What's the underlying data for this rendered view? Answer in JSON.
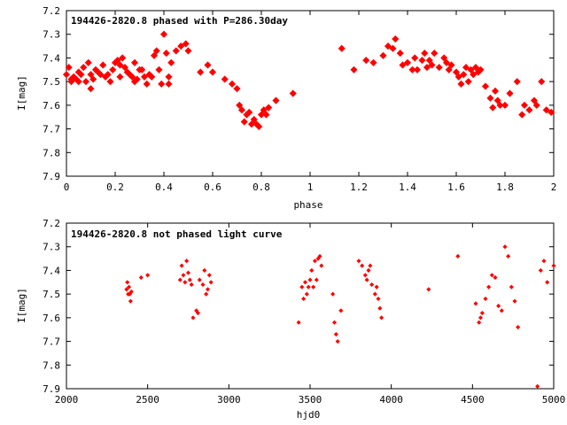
{
  "chart_data": [
    {
      "type": "scatter",
      "title": "194426-2820.8 phased with P=286.30day",
      "xlabel": "phase",
      "ylabel": "I[mag]",
      "xlim": [
        0,
        2
      ],
      "ylim": [
        7.9,
        7.2
      ],
      "y_inverted": true,
      "xticks": [
        "0",
        "0.2",
        "0.4",
        "0.6",
        "0.8",
        "1",
        "1.2",
        "1.4",
        "1.6",
        "1.8",
        "2"
      ],
      "yticks": [
        "7.2",
        "7.3",
        "7.4",
        "7.5",
        "7.6",
        "7.7",
        "7.8",
        "7.9"
      ],
      "marker_color": "#ff0000",
      "marker": "filled-diamond",
      "grid": false,
      "series": [
        {
          "x": [
            0.0,
            0.01,
            0.02,
            0.02,
            0.03,
            0.04,
            0.05,
            0.05,
            0.06,
            0.07,
            0.08,
            0.09,
            0.1,
            0.1,
            0.11,
            0.12,
            0.13,
            0.14,
            0.15,
            0.16,
            0.17,
            0.18,
            0.19,
            0.2,
            0.21,
            0.22,
            0.22,
            0.23,
            0.24,
            0.25,
            0.26,
            0.27,
            0.28,
            0.28,
            0.29,
            0.3,
            0.31,
            0.32,
            0.33,
            0.34,
            0.35,
            0.36,
            0.37,
            0.38,
            0.39,
            0.4,
            0.41,
            0.42,
            0.42,
            0.43,
            0.45,
            0.47,
            0.49,
            0.5,
            0.55,
            0.58,
            0.6,
            0.65,
            0.68,
            0.7,
            0.71,
            0.72,
            0.73,
            0.74,
            0.75,
            0.76,
            0.77,
            0.78,
            0.79,
            0.8,
            0.81,
            0.82,
            0.83,
            0.86,
            0.93,
            1.13,
            1.18,
            1.23,
            1.26,
            1.3,
            1.32,
            1.34,
            1.35,
            1.37,
            1.38,
            1.4,
            1.42,
            1.43,
            1.44,
            1.46,
            1.47,
            1.48,
            1.49,
            1.5,
            1.51,
            1.53,
            1.55,
            1.56,
            1.57,
            1.58,
            1.6,
            1.61,
            1.62,
            1.63,
            1.64,
            1.65,
            1.66,
            1.67,
            1.68,
            1.69,
            1.7,
            1.72,
            1.74,
            1.75,
            1.76,
            1.77,
            1.78,
            1.8,
            1.82,
            1.85,
            1.87,
            1.88,
            1.9,
            1.92,
            1.93,
            1.95,
            1.97,
            1.99
          ],
          "y": [
            7.47,
            7.44,
            7.49,
            7.5,
            7.48,
            7.49,
            7.46,
            7.5,
            7.47,
            7.44,
            7.5,
            7.42,
            7.47,
            7.53,
            7.49,
            7.45,
            7.46,
            7.47,
            7.43,
            7.48,
            7.47,
            7.5,
            7.45,
            7.42,
            7.41,
            7.43,
            7.48,
            7.4,
            7.44,
            7.46,
            7.47,
            7.48,
            7.5,
            7.42,
            7.49,
            7.45,
            7.45,
            7.48,
            7.51,
            7.47,
            7.48,
            7.39,
            7.37,
            7.45,
            7.51,
            7.3,
            7.38,
            7.48,
            7.51,
            7.42,
            7.37,
            7.35,
            7.34,
            7.37,
            7.46,
            7.43,
            7.46,
            7.49,
            7.51,
            7.53,
            7.6,
            7.62,
            7.67,
            7.64,
            7.63,
            7.68,
            7.66,
            7.68,
            7.69,
            7.64,
            7.62,
            7.64,
            7.61,
            7.58,
            7.55,
            7.36,
            7.45,
            7.41,
            7.42,
            7.39,
            7.35,
            7.36,
            7.32,
            7.38,
            7.43,
            7.42,
            7.45,
            7.4,
            7.45,
            7.41,
            7.38,
            7.44,
            7.41,
            7.43,
            7.38,
            7.44,
            7.4,
            7.42,
            7.45,
            7.43,
            7.46,
            7.48,
            7.51,
            7.47,
            7.44,
            7.5,
            7.45,
            7.47,
            7.44,
            7.46,
            7.45,
            7.52,
            7.57,
            7.61,
            7.54,
            7.58,
            7.6,
            7.6,
            7.55,
            7.5,
            7.64,
            7.6,
            7.62,
            7.58,
            7.6,
            7.5,
            7.62,
            7.63
          ]
        }
      ]
    },
    {
      "type": "scatter",
      "title": "194426-2820.8 not phased light curve",
      "xlabel": "hjd0",
      "ylabel": "I[mag]",
      "xlim": [
        2000,
        5000
      ],
      "ylim": [
        7.9,
        7.2
      ],
      "y_inverted": true,
      "xticks": [
        "2000",
        "2500",
        "3000",
        "3500",
        "4000",
        "4500",
        "5000"
      ],
      "yticks": [
        "7.2",
        "7.3",
        "7.4",
        "7.5",
        "7.6",
        "7.7",
        "7.8",
        "7.9"
      ],
      "marker_color": "#ff0000",
      "marker": "small-diamond",
      "grid": false,
      "series": [
        {
          "x": [
            2370,
            2375,
            2380,
            2385,
            2390,
            2395,
            2400,
            2460,
            2500,
            2700,
            2710,
            2720,
            2730,
            2740,
            2750,
            2760,
            2770,
            2780,
            2800,
            2810,
            2820,
            2840,
            2850,
            2860,
            2870,
            2880,
            2890,
            3430,
            3450,
            3460,
            3470,
            3480,
            3490,
            3500,
            3510,
            3520,
            3530,
            3540,
            3550,
            3560,
            3570,
            3640,
            3650,
            3660,
            3670,
            3690,
            3800,
            3820,
            3840,
            3850,
            3860,
            3870,
            3880,
            3900,
            3910,
            3920,
            3930,
            3940,
            4230,
            4410,
            4520,
            4540,
            4550,
            4560,
            4580,
            4600,
            4620,
            4640,
            4660,
            4680,
            4700,
            4720,
            4740,
            4760,
            4780,
            4900,
            4920,
            4940,
            4960,
            5000
          ],
          "y": [
            7.48,
            7.45,
            7.5,
            7.47,
            7.5,
            7.53,
            7.49,
            7.43,
            7.42,
            7.44,
            7.38,
            7.42,
            7.45,
            7.36,
            7.41,
            7.44,
            7.46,
            7.6,
            7.57,
            7.58,
            7.44,
            7.46,
            7.4,
            7.5,
            7.48,
            7.42,
            7.45,
            7.62,
            7.47,
            7.52,
            7.45,
            7.5,
            7.47,
            7.44,
            7.4,
            7.47,
            7.36,
            7.44,
            7.35,
            7.34,
            7.38,
            7.5,
            7.62,
            7.67,
            7.7,
            7.57,
            7.36,
            7.38,
            7.42,
            7.44,
            7.4,
            7.38,
            7.46,
            7.5,
            7.47,
            7.52,
            7.56,
            7.6,
            7.48,
            7.34,
            7.54,
            7.62,
            7.6,
            7.58,
            7.52,
            7.47,
            7.42,
            7.43,
            7.55,
            7.57,
            7.3,
            7.34,
            7.47,
            7.53,
            7.64,
            7.89,
            7.4,
            7.36,
            7.45,
            7.38
          ]
        }
      ]
    }
  ]
}
